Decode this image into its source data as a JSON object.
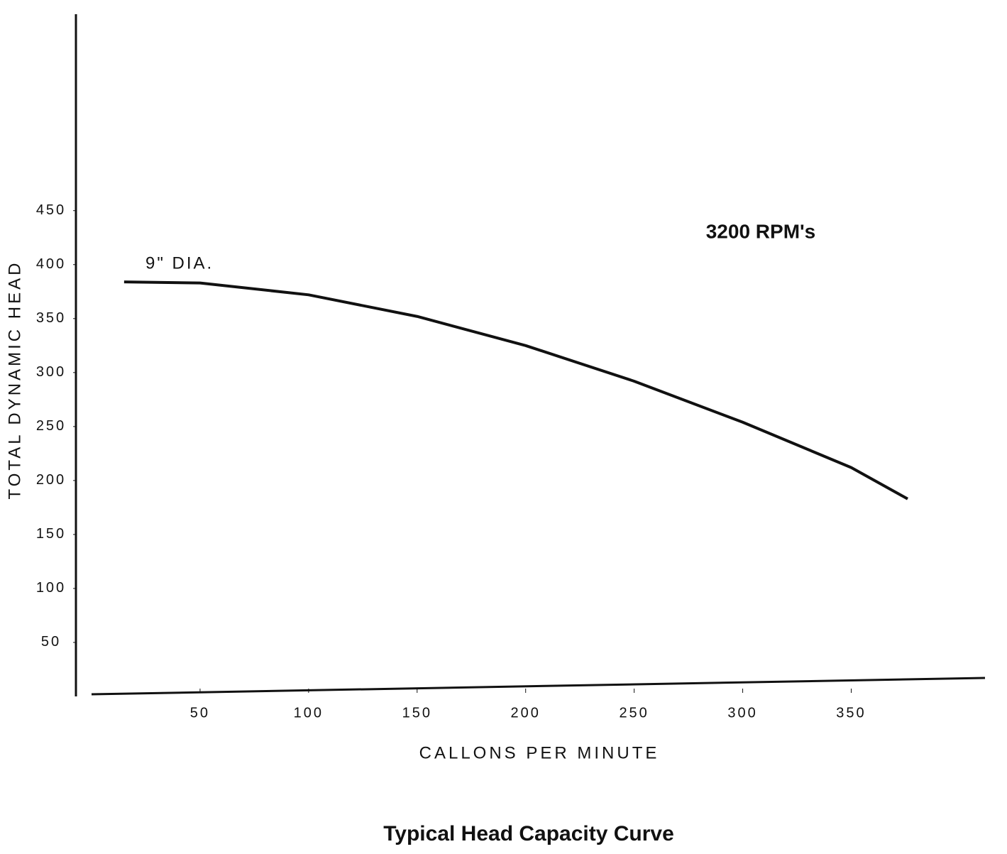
{
  "chart_data": {
    "type": "line",
    "title": "Typical Head Capacity Curve",
    "xlabel": "CALLONS PER MINUTE",
    "ylabel": "TOTAL DYNAMIC HEAD",
    "annotation": "3200 RPM's",
    "x": [
      15,
      50,
      100,
      150,
      200,
      250,
      300,
      350,
      376
    ],
    "series": [
      {
        "name": "9\" DIA.",
        "color": "#111111",
        "values": [
          384,
          383,
          372,
          352,
          325,
          292,
          254,
          212,
          183
        ]
      }
    ],
    "xlim": [
      0,
      410
    ],
    "xticks": [
      50,
      100,
      150,
      200,
      250,
      300,
      350
    ],
    "ylim": [
      0,
      630
    ],
    "yticks": [
      50,
      100,
      150,
      200,
      250,
      300,
      350,
      400,
      450
    ],
    "grid": false
  }
}
